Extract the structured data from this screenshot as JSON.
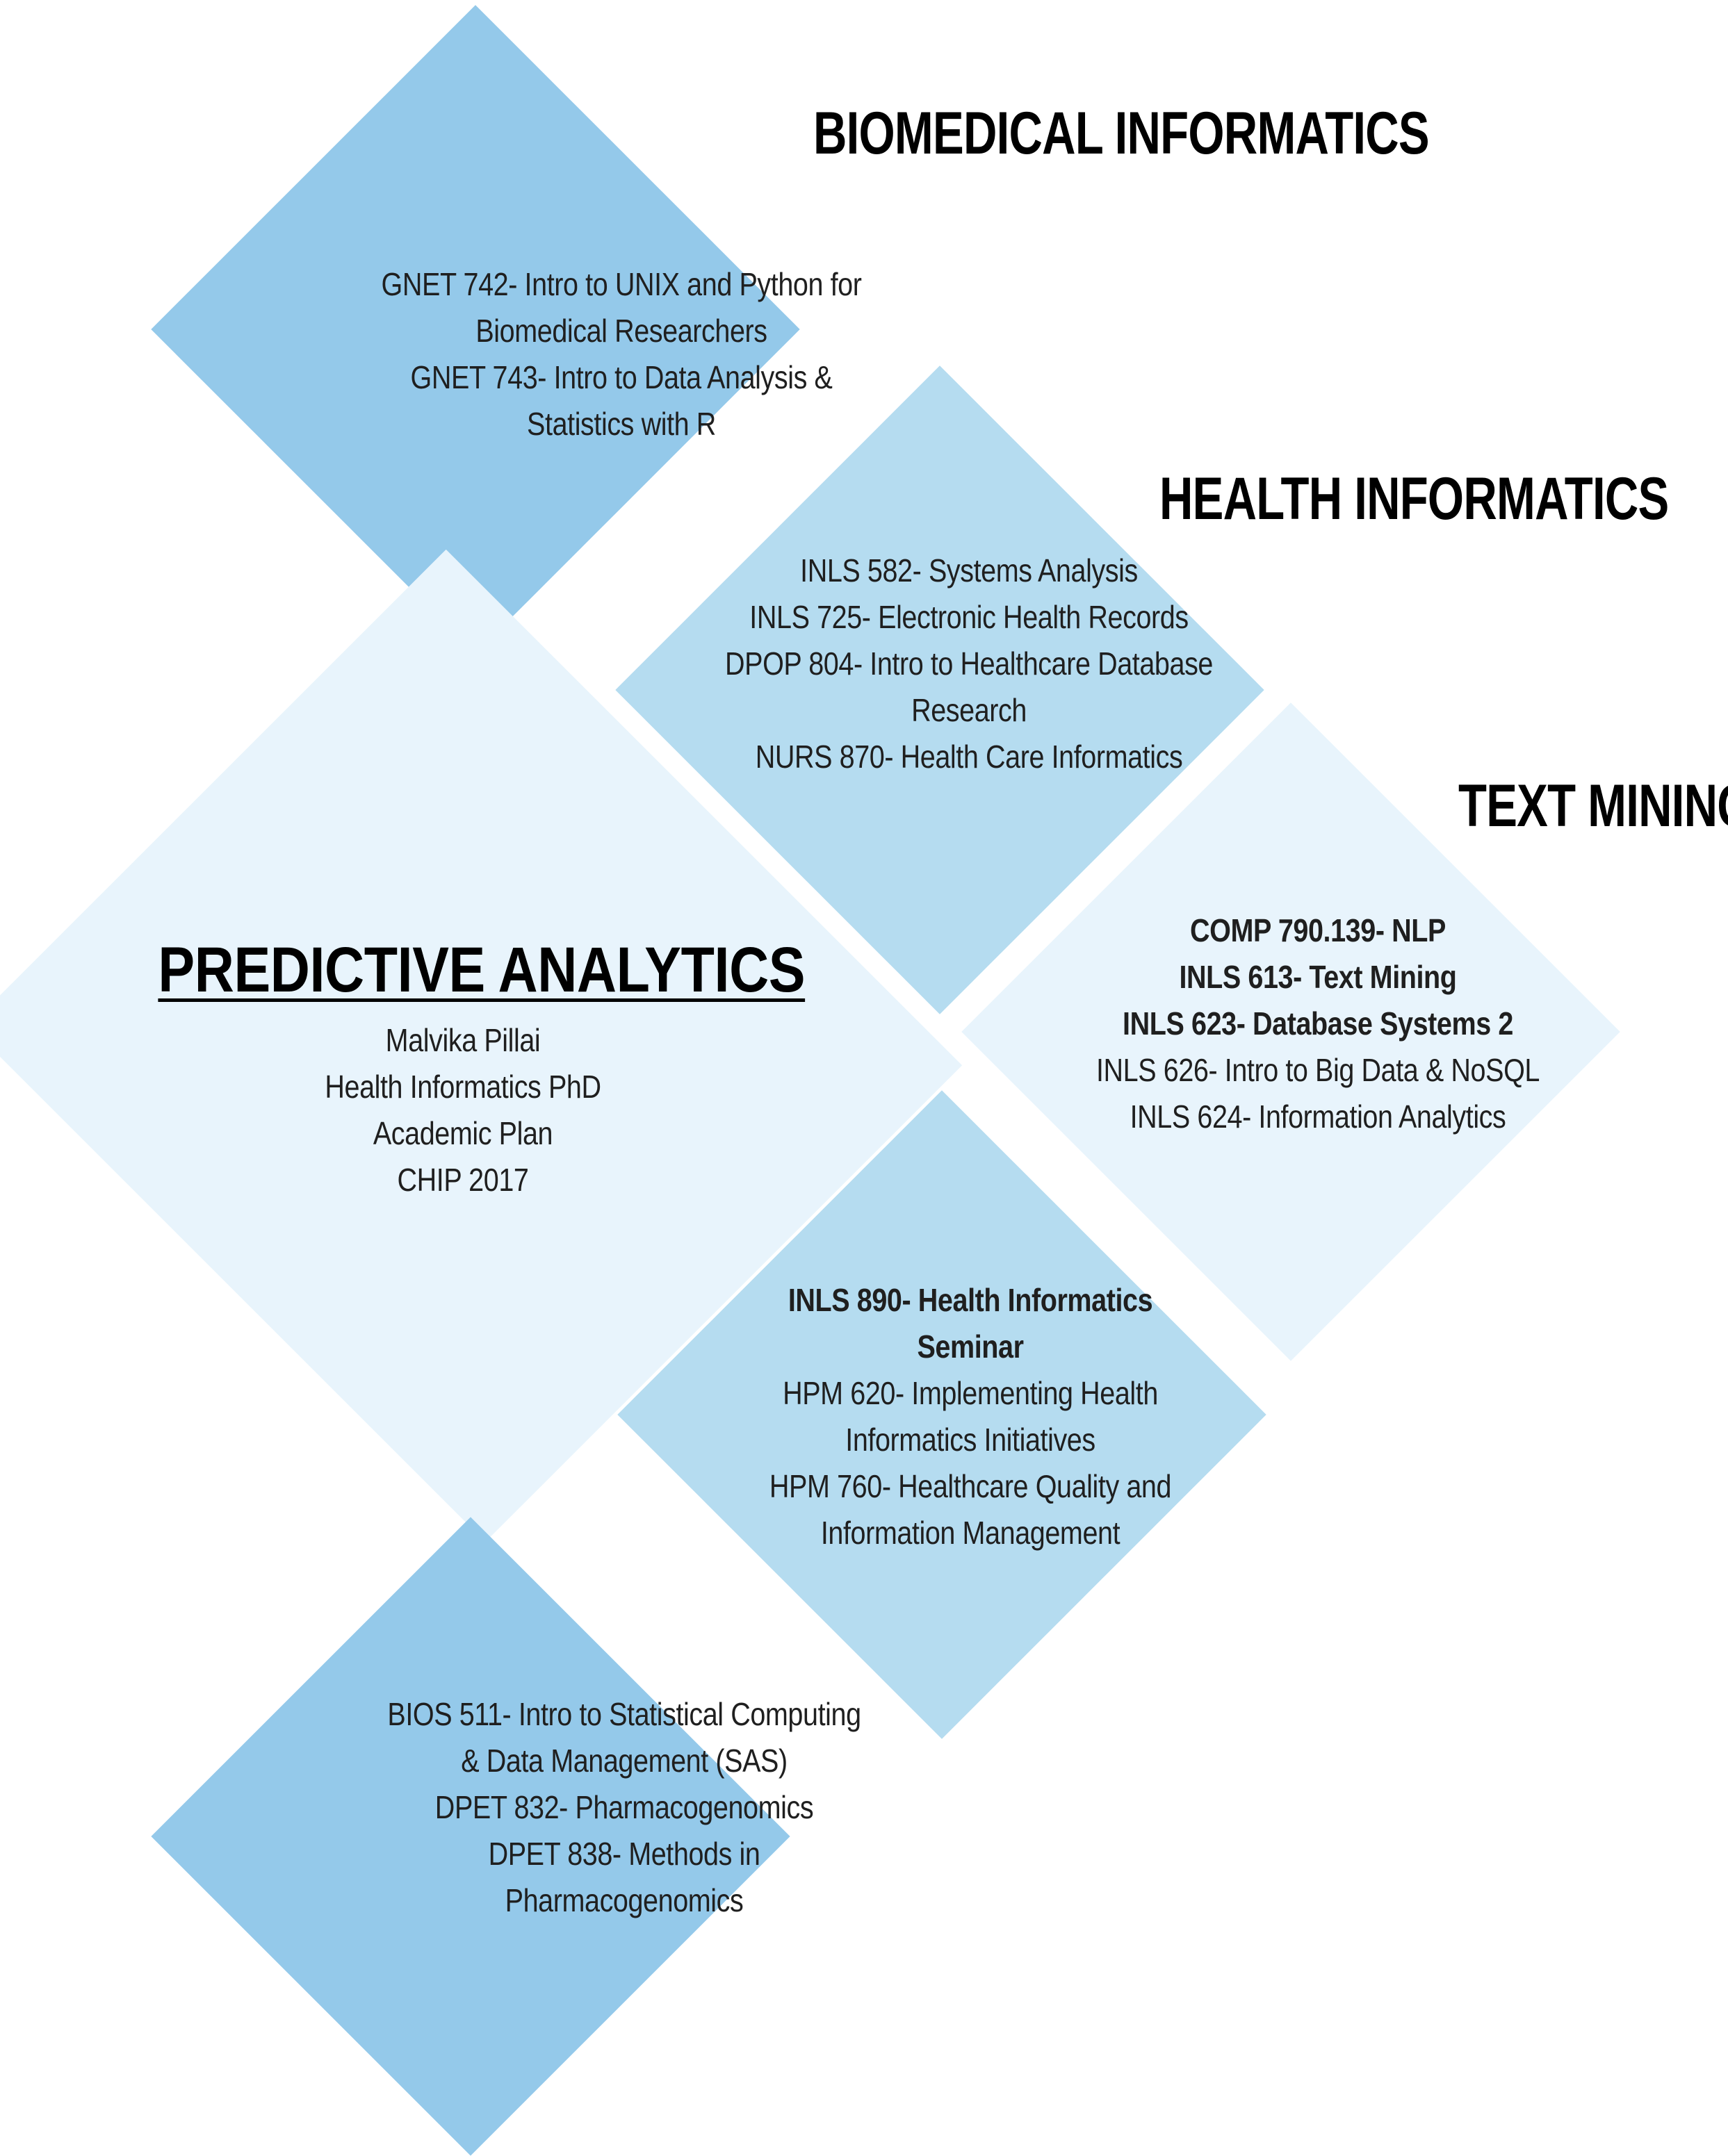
{
  "colors": {
    "biomedical": "#94c9ea",
    "health": "#b5dcf0",
    "text_mining": "#e8f4fc",
    "predictive": "#e8f4fc",
    "seminar": "#b5dcf0",
    "stats": "#94c9ea"
  },
  "biomedical": {
    "heading": "BIOMEDICAL INFORMATICS",
    "lines": [
      "GNET 742- Intro to UNIX and Python for",
      "Biomedical Researchers",
      "GNET 743- Intro to Data Analysis &",
      "Statistics with R"
    ]
  },
  "health": {
    "heading": "HEALTH INFORMATICS",
    "lines": [
      "INLS 582- Systems Analysis",
      "INLS 725- Electronic Health Records",
      "DPOP 804- Intro to Healthcare Database",
      "Research",
      "NURS 870- Health Care Informatics"
    ]
  },
  "text_mining": {
    "heading": "TEXT MINING",
    "lines": [
      "COMP 790.139- NLP",
      "INLS 613- Text Mining",
      "INLS 623- Database Systems 2",
      "INLS 626- Intro to Big Data & NoSQL",
      "INLS 624- Information Analytics"
    ]
  },
  "predictive": {
    "title": "PREDICTIVE ANALYTICS",
    "lines": [
      "Malvika Pillai",
      "Health Informatics PhD",
      "Academic Plan",
      "CHIP 2017"
    ]
  },
  "seminar": {
    "lines": [
      "INLS 890- Health Informatics",
      "Seminar",
      "HPM 620- Implementing Health",
      "Informatics Initiatives",
      "HPM 760- Healthcare Quality and",
      "Information Management"
    ]
  },
  "stats": {
    "lines": [
      "BIOS 511- Intro to Statistical Computing",
      "& Data Management (SAS)",
      "DPET 832- Pharmacogenomics",
      "DPET 838- Methods in",
      "Pharmacogenomics"
    ]
  }
}
